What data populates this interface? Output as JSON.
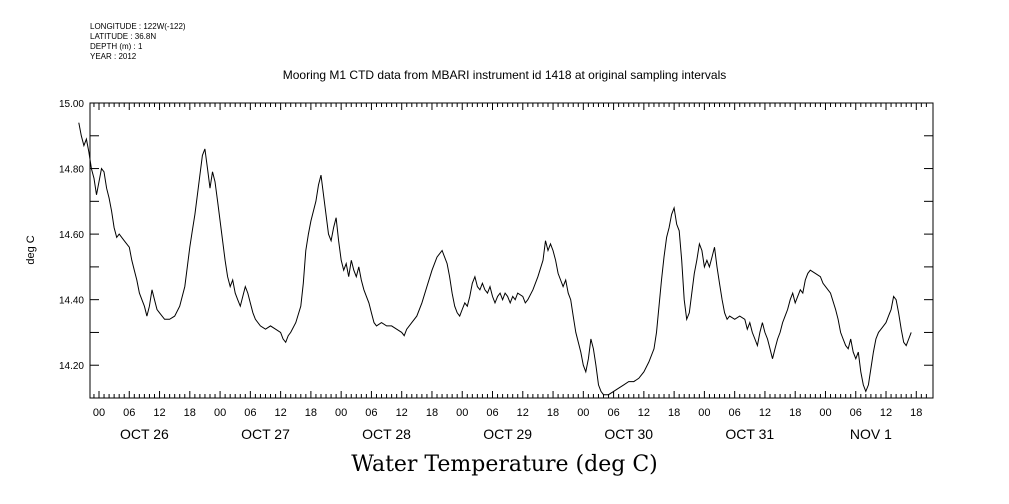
{
  "metadata": {
    "longitude": "LONGITUDE : 122W(-122)",
    "latitude": "LATITUDE : 36.8N",
    "depth": "DEPTH (m) : 1",
    "year": "YEAR : 2012"
  },
  "chart_data": {
    "type": "line",
    "title": "Mooring M1 CTD data from MBARI instrument id 1418 at original sampling intervals",
    "ylabel": "deg C",
    "xlabel": "Water Temperature (deg C)",
    "ylim": [
      14.1,
      15.0
    ],
    "xlim_hours": [
      -4,
      164
    ],
    "y_ticks": [
      {
        "value": 15.0,
        "label": "15.00"
      },
      {
        "value": 14.8,
        "label": "14.80"
      },
      {
        "value": 14.6,
        "label": "14.60"
      },
      {
        "value": 14.4,
        "label": "14.40"
      },
      {
        "value": 14.2,
        "label": "14.20"
      }
    ],
    "hour_labels": [
      "00",
      "06",
      "12",
      "18"
    ],
    "days": [
      "OCT 26",
      "OCT 27",
      "OCT 28",
      "OCT 29",
      "OCT 30",
      "OCT 31",
      "NOV  1"
    ],
    "series": [
      {
        "points": [
          [
            -4,
            14.94
          ],
          [
            -3.5,
            14.9
          ],
          [
            -3,
            14.87
          ],
          [
            -2.5,
            14.89
          ],
          [
            -2,
            14.85
          ],
          [
            -1.5,
            14.8
          ],
          [
            -1,
            14.77
          ],
          [
            -0.5,
            14.72
          ],
          [
            0,
            14.76
          ],
          [
            0.5,
            14.8
          ],
          [
            1,
            14.79
          ],
          [
            1.5,
            14.74
          ],
          [
            2,
            14.71
          ],
          [
            2.5,
            14.67
          ],
          [
            3,
            14.62
          ],
          [
            3.5,
            14.59
          ],
          [
            4,
            14.6
          ],
          [
            5,
            14.58
          ],
          [
            6,
            14.56
          ],
          [
            6.5,
            14.52
          ],
          [
            7,
            14.49
          ],
          [
            7.5,
            14.46
          ],
          [
            8,
            14.42
          ],
          [
            8.5,
            14.4
          ],
          [
            9,
            14.38
          ],
          [
            9.5,
            14.35
          ],
          [
            10,
            14.38
          ],
          [
            10.5,
            14.43
          ],
          [
            11,
            14.4
          ],
          [
            11.5,
            14.37
          ],
          [
            12,
            14.36
          ],
          [
            13,
            14.34
          ],
          [
            14,
            14.34
          ],
          [
            15,
            14.35
          ],
          [
            16,
            14.38
          ],
          [
            17,
            14.44
          ],
          [
            17.5,
            14.5
          ],
          [
            18,
            14.56
          ],
          [
            18.5,
            14.61
          ],
          [
            19,
            14.66
          ],
          [
            19.5,
            14.72
          ],
          [
            20,
            14.78
          ],
          [
            20.5,
            14.84
          ],
          [
            21,
            14.86
          ],
          [
            21.5,
            14.8
          ],
          [
            22,
            14.74
          ],
          [
            22.5,
            14.79
          ],
          [
            23,
            14.76
          ],
          [
            23.5,
            14.7
          ],
          [
            24,
            14.64
          ],
          [
            24.5,
            14.58
          ],
          [
            25,
            14.52
          ],
          [
            25.5,
            14.47
          ],
          [
            26,
            14.44
          ],
          [
            26.5,
            14.46
          ],
          [
            27,
            14.42
          ],
          [
            27.5,
            14.4
          ],
          [
            28,
            14.38
          ],
          [
            28.5,
            14.41
          ],
          [
            29,
            14.44
          ],
          [
            29.5,
            14.42
          ],
          [
            30,
            14.39
          ],
          [
            30.5,
            14.36
          ],
          [
            31,
            14.34
          ],
          [
            32,
            14.32
          ],
          [
            33,
            14.31
          ],
          [
            34,
            14.32
          ],
          [
            35,
            14.31
          ],
          [
            36,
            14.3
          ],
          [
            36.5,
            14.28
          ],
          [
            37,
            14.27
          ],
          [
            37.5,
            14.29
          ],
          [
            38,
            14.3
          ],
          [
            39,
            14.33
          ],
          [
            40,
            14.38
          ],
          [
            40.5,
            14.45
          ],
          [
            41,
            14.55
          ],
          [
            41.5,
            14.6
          ],
          [
            42,
            14.64
          ],
          [
            43,
            14.7
          ],
          [
            43.5,
            14.75
          ],
          [
            44,
            14.78
          ],
          [
            44.5,
            14.72
          ],
          [
            45,
            14.66
          ],
          [
            45.5,
            14.6
          ],
          [
            46,
            14.58
          ],
          [
            46.5,
            14.62
          ],
          [
            47,
            14.65
          ],
          [
            47.5,
            14.58
          ],
          [
            48,
            14.52
          ],
          [
            48.5,
            14.49
          ],
          [
            49,
            14.51
          ],
          [
            49.5,
            14.47
          ],
          [
            50,
            14.52
          ],
          [
            50.5,
            14.49
          ],
          [
            51,
            14.47
          ],
          [
            51.5,
            14.5
          ],
          [
            52,
            14.46
          ],
          [
            52.5,
            14.43
          ],
          [
            53,
            14.41
          ],
          [
            53.5,
            14.39
          ],
          [
            54,
            14.36
          ],
          [
            54.5,
            14.33
          ],
          [
            55,
            14.32
          ],
          [
            56,
            14.33
          ],
          [
            57,
            14.32
          ],
          [
            58,
            14.32
          ],
          [
            59,
            14.31
          ],
          [
            60,
            14.3
          ],
          [
            60.5,
            14.29
          ],
          [
            61,
            14.31
          ],
          [
            62,
            14.33
          ],
          [
            63,
            14.35
          ],
          [
            64,
            14.39
          ],
          [
            65,
            14.44
          ],
          [
            66,
            14.49
          ],
          [
            67,
            14.53
          ],
          [
            68,
            14.55
          ],
          [
            68.5,
            14.53
          ],
          [
            69,
            14.51
          ],
          [
            69.5,
            14.47
          ],
          [
            70,
            14.42
          ],
          [
            70.5,
            14.38
          ],
          [
            71,
            14.36
          ],
          [
            71.5,
            14.35
          ],
          [
            72,
            14.37
          ],
          [
            72.5,
            14.39
          ],
          [
            73,
            14.38
          ],
          [
            73.5,
            14.41
          ],
          [
            74,
            14.45
          ],
          [
            74.5,
            14.47
          ],
          [
            75,
            14.44
          ],
          [
            75.5,
            14.43
          ],
          [
            76,
            14.45
          ],
          [
            76.5,
            14.43
          ],
          [
            77,
            14.42
          ],
          [
            77.5,
            14.44
          ],
          [
            78,
            14.41
          ],
          [
            78.5,
            14.39
          ],
          [
            79,
            14.41
          ],
          [
            79.5,
            14.42
          ],
          [
            80,
            14.4
          ],
          [
            80.5,
            14.42
          ],
          [
            81,
            14.41
          ],
          [
            81.5,
            14.39
          ],
          [
            82,
            14.41
          ],
          [
            82.5,
            14.4
          ],
          [
            83,
            14.42
          ],
          [
            84,
            14.41
          ],
          [
            84.5,
            14.39
          ],
          [
            85,
            14.4
          ],
          [
            86,
            14.43
          ],
          [
            87,
            14.47
          ],
          [
            88,
            14.52
          ],
          [
            88.5,
            14.58
          ],
          [
            89,
            14.55
          ],
          [
            89.5,
            14.57
          ],
          [
            90,
            14.55
          ],
          [
            90.5,
            14.52
          ],
          [
            91,
            14.48
          ],
          [
            91.5,
            14.46
          ],
          [
            92,
            14.44
          ],
          [
            92.5,
            14.46
          ],
          [
            93,
            14.42
          ],
          [
            93.5,
            14.4
          ],
          [
            94,
            14.35
          ],
          [
            94.5,
            14.3
          ],
          [
            95,
            14.27
          ],
          [
            95.5,
            14.24
          ],
          [
            96,
            14.2
          ],
          [
            96.5,
            14.18
          ],
          [
            97,
            14.22
          ],
          [
            97.5,
            14.28
          ],
          [
            98,
            14.25
          ],
          [
            98.5,
            14.2
          ],
          [
            99,
            14.14
          ],
          [
            99.5,
            14.12
          ],
          [
            100,
            14.11
          ],
          [
            101,
            14.11
          ],
          [
            102,
            14.12
          ],
          [
            103,
            14.13
          ],
          [
            104,
            14.14
          ],
          [
            105,
            14.15
          ],
          [
            106,
            14.15
          ],
          [
            107,
            14.16
          ],
          [
            108,
            14.18
          ],
          [
            109,
            14.21
          ],
          [
            110,
            14.25
          ],
          [
            110.5,
            14.3
          ],
          [
            111,
            14.38
          ],
          [
            111.5,
            14.46
          ],
          [
            112,
            14.53
          ],
          [
            112.5,
            14.59
          ],
          [
            113,
            14.62
          ],
          [
            113.5,
            14.66
          ],
          [
            114,
            14.68
          ],
          [
            114.5,
            14.63
          ],
          [
            115,
            14.61
          ],
          [
            115.5,
            14.52
          ],
          [
            116,
            14.4
          ],
          [
            116.5,
            14.34
          ],
          [
            117,
            14.36
          ],
          [
            117.5,
            14.42
          ],
          [
            118,
            14.48
          ],
          [
            118.5,
            14.52
          ],
          [
            119,
            14.57
          ],
          [
            119.5,
            14.55
          ],
          [
            120,
            14.5
          ],
          [
            120.5,
            14.52
          ],
          [
            121,
            14.5
          ],
          [
            121.5,
            14.53
          ],
          [
            122,
            14.56
          ],
          [
            122.5,
            14.5
          ],
          [
            123,
            14.45
          ],
          [
            123.5,
            14.4
          ],
          [
            124,
            14.36
          ],
          [
            124.5,
            14.34
          ],
          [
            125,
            14.35
          ],
          [
            126,
            14.34
          ],
          [
            127,
            14.35
          ],
          [
            128,
            14.34
          ],
          [
            128.5,
            14.31
          ],
          [
            129,
            14.33
          ],
          [
            129.5,
            14.3
          ],
          [
            130,
            14.28
          ],
          [
            130.5,
            14.26
          ],
          [
            131,
            14.3
          ],
          [
            131.5,
            14.33
          ],
          [
            132,
            14.3
          ],
          [
            132.5,
            14.28
          ],
          [
            133,
            14.25
          ],
          [
            133.5,
            14.22
          ],
          [
            134,
            14.25
          ],
          [
            134.5,
            14.28
          ],
          [
            135,
            14.3
          ],
          [
            135.5,
            14.33
          ],
          [
            136,
            14.35
          ],
          [
            136.5,
            14.37
          ],
          [
            137,
            14.4
          ],
          [
            137.5,
            14.42
          ],
          [
            138,
            14.39
          ],
          [
            138.5,
            14.41
          ],
          [
            139,
            14.43
          ],
          [
            139.5,
            14.42
          ],
          [
            140,
            14.46
          ],
          [
            140.5,
            14.48
          ],
          [
            141,
            14.49
          ],
          [
            142,
            14.48
          ],
          [
            143,
            14.47
          ],
          [
            143.5,
            14.45
          ],
          [
            144,
            14.44
          ],
          [
            145,
            14.42
          ],
          [
            146,
            14.37
          ],
          [
            146.5,
            14.34
          ],
          [
            147,
            14.3
          ],
          [
            147.5,
            14.28
          ],
          [
            148,
            14.26
          ],
          [
            148.5,
            14.25
          ],
          [
            149,
            14.28
          ],
          [
            149.5,
            14.24
          ],
          [
            150,
            14.22
          ],
          [
            150.5,
            14.24
          ],
          [
            151,
            14.18
          ],
          [
            151.5,
            14.14
          ],
          [
            152,
            14.12
          ],
          [
            152.5,
            14.14
          ],
          [
            153,
            14.19
          ],
          [
            153.5,
            14.24
          ],
          [
            154,
            14.28
          ],
          [
            154.5,
            14.3
          ],
          [
            155,
            14.31
          ],
          [
            155.5,
            14.32
          ],
          [
            156,
            14.33
          ],
          [
            156.5,
            14.35
          ],
          [
            157,
            14.37
          ],
          [
            157.5,
            14.41
          ],
          [
            158,
            14.4
          ],
          [
            158.5,
            14.36
          ],
          [
            159,
            14.31
          ],
          [
            159.5,
            14.27
          ],
          [
            160,
            14.26
          ],
          [
            160.5,
            14.28
          ],
          [
            161,
            14.3
          ]
        ]
      }
    ]
  }
}
